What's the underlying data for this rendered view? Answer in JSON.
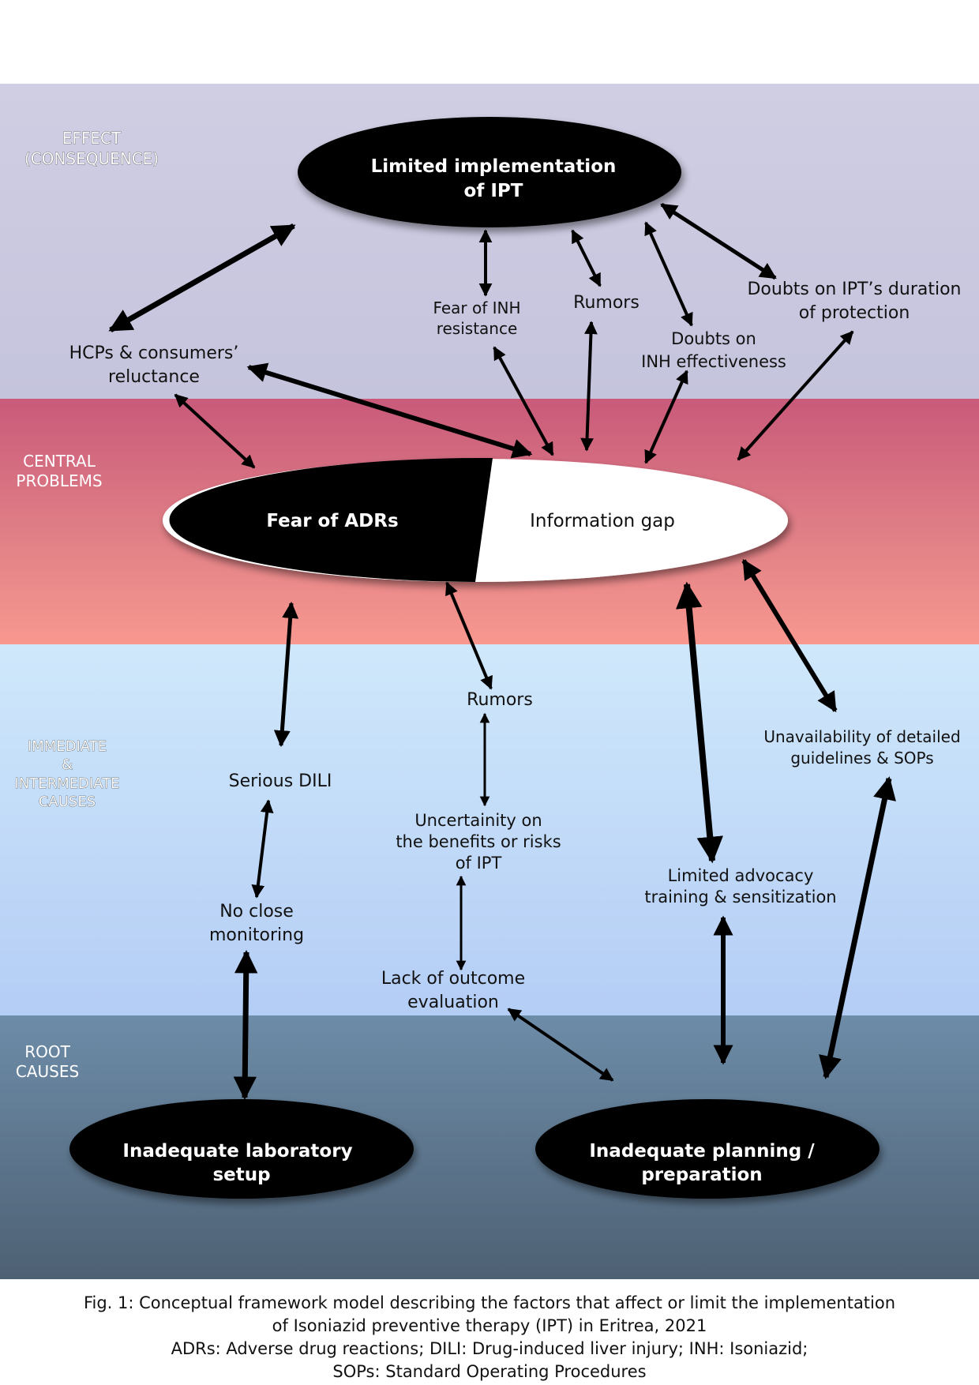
{
  "bands": {
    "effect": [
      "EFFECT",
      "(CONSEQUENCE)"
    ],
    "central": [
      "CENTRAL",
      "PROBLEMS"
    ],
    "immediate": [
      "IMMEDIATE",
      "&",
      "INTERMEDIATE",
      "CAUSES"
    ],
    "root": [
      "ROOT",
      "CAUSES"
    ]
  },
  "nodes": {
    "limited_ipt": [
      "Limited implementation",
      "of IPT"
    ],
    "fear_adrs": "Fear of  ADRs",
    "info_gap": "Information gap",
    "lab_setup": [
      "Inadequate  laboratory",
      "setup"
    ],
    "planning": [
      "Inadequate planning /",
      "preparation"
    ]
  },
  "labels": {
    "hcp_reluctance": [
      "HCPs & consumers’",
      "reluctance"
    ],
    "fear_inh_resistance": [
      "Fear of INH",
      "resistance"
    ],
    "rumors_top": "Rumors",
    "doubts_inh": [
      "Doubts on",
      "INH effectiveness"
    ],
    "doubts_duration": [
      "Doubts on IPT’s duration",
      "of protection"
    ],
    "rumors_mid": "Rumors",
    "serious_dili": "Serious DILI",
    "no_monitoring": [
      "No close",
      "monitoring"
    ],
    "uncertainty": [
      "Uncertainity on",
      "the benefits or risks",
      "of IPT"
    ],
    "lack_evaluation": [
      "Lack of outcome",
      "evaluation"
    ],
    "limited_advocacy": [
      "Limited advocacy",
      "training & sensitization"
    ],
    "unavailability": [
      "Unavailability of detailed",
      "guidelines & SOPs"
    ]
  },
  "caption": [
    "Fig. 1: Conceptual framework model describing the factors that affect or limit the implementation",
    "of Isoniazid preventive therapy (IPT) in Eritrea, 2021",
    "ADRs: Adverse drug reactions; DILI: Drug-induced liver injury; INH: Isoniazid;",
    "SOPs: Standard Operating Procedures"
  ]
}
